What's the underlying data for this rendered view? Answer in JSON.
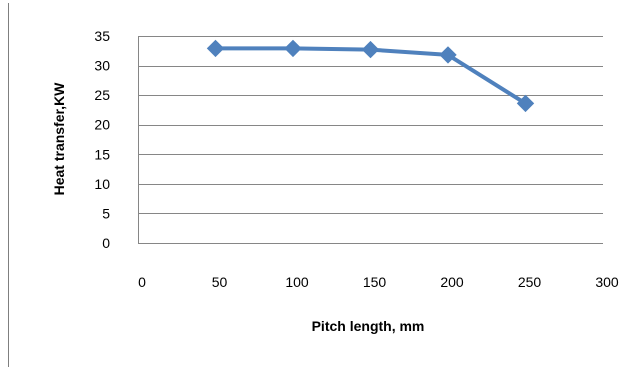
{
  "chart_data": {
    "type": "line",
    "title": "",
    "xlabel": "Pitch length, mm",
    "ylabel": "Heat transfer,KW",
    "xlim": [
      0,
      300
    ],
    "ylim": [
      0,
      35
    ],
    "x_ticks": [
      0,
      50,
      100,
      150,
      200,
      250,
      300
    ],
    "y_ticks": [
      0,
      5,
      10,
      15,
      20,
      25,
      30,
      35
    ],
    "grid": "horizontal",
    "legend": "none",
    "series": [
      {
        "color": "#4f81bd",
        "marker": "diamond",
        "x": [
          50,
          100,
          150,
          200,
          250
        ],
        "y": [
          32.9,
          32.9,
          32.7,
          31.8,
          23.6
        ]
      }
    ]
  }
}
